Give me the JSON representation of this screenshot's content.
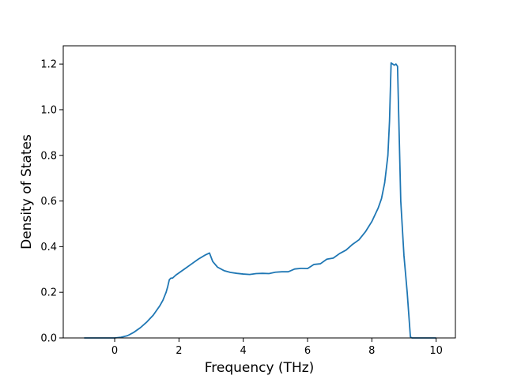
{
  "chart_data": {
    "type": "line",
    "title": "",
    "xlabel": "Frequency (THz)",
    "ylabel": "Density of States",
    "xlim": [
      -1.6,
      10.6
    ],
    "ylim": [
      0.0,
      1.28
    ],
    "grid": false,
    "legend": "none",
    "x_ticks": [
      0,
      2,
      4,
      6,
      8,
      10
    ],
    "y_ticks": [
      0.0,
      0.2,
      0.4,
      0.6,
      0.8,
      1.0,
      1.2
    ],
    "x_tick_labels": [
      "0",
      "2",
      "4",
      "6",
      "8",
      "10"
    ],
    "y_tick_labels": [
      "0.0",
      "0.2",
      "0.4",
      "0.6",
      "0.8",
      "1.0",
      "1.2"
    ],
    "series": [
      {
        "color": "#1f77b4",
        "x": [
          -0.95,
          -0.5,
          0.0,
          0.2,
          0.4,
          0.6,
          0.8,
          1.0,
          1.2,
          1.4,
          1.5,
          1.6,
          1.65,
          1.7,
          1.75,
          1.8,
          1.9,
          2.0,
          2.2,
          2.4,
          2.6,
          2.8,
          2.95,
          3.05,
          3.2,
          3.4,
          3.6,
          3.8,
          4.0,
          4.2,
          4.4,
          4.6,
          4.8,
          5.0,
          5.2,
          5.4,
          5.6,
          5.8,
          6.0,
          6.2,
          6.4,
          6.6,
          6.8,
          7.0,
          7.2,
          7.4,
          7.6,
          7.8,
          8.0,
          8.2,
          8.3,
          8.4,
          8.45,
          8.5,
          8.55,
          8.6,
          8.65,
          8.7,
          8.75,
          8.8,
          8.9,
          9.0,
          9.1,
          9.2,
          9.25,
          9.5,
          10.0
        ],
        "y": [
          0.0,
          0.0,
          0.0,
          0.003,
          0.01,
          0.025,
          0.045,
          0.07,
          0.1,
          0.14,
          0.165,
          0.2,
          0.225,
          0.255,
          0.262,
          0.262,
          0.275,
          0.285,
          0.305,
          0.325,
          0.345,
          0.362,
          0.372,
          0.335,
          0.31,
          0.295,
          0.287,
          0.283,
          0.28,
          0.278,
          0.282,
          0.283,
          0.282,
          0.288,
          0.29,
          0.29,
          0.302,
          0.305,
          0.304,
          0.322,
          0.325,
          0.345,
          0.35,
          0.37,
          0.385,
          0.41,
          0.43,
          0.465,
          0.51,
          0.57,
          0.61,
          0.68,
          0.74,
          0.8,
          0.95,
          1.205,
          1.2,
          1.195,
          1.2,
          1.19,
          0.6,
          0.36,
          0.2,
          0.005,
          0.0,
          0.0,
          0.0
        ]
      }
    ]
  }
}
